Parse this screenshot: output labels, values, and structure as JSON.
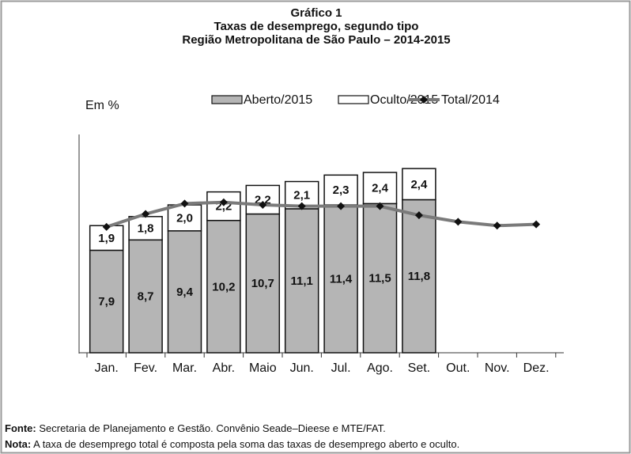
{
  "chart_data": {
    "type": "bar",
    "stacked": true,
    "title": "Gráfico 1",
    "subtitle": "Taxas de desemprego, segundo tipo",
    "subtitle2": "Região Metropolitana de São Paulo – 2014-2015",
    "unit_label": "Em %",
    "categories": [
      "Jan.",
      "Fev.",
      "Mar.",
      "Abr.",
      "Maio",
      "Jun.",
      "Jul.",
      "Ago.",
      "Set.",
      "Out.",
      "Nov.",
      "Dez."
    ],
    "series": [
      {
        "name": "Aberto/2015",
        "color": "#b5b5b5",
        "type": "bar",
        "values": [
          7.9,
          8.7,
          9.4,
          10.2,
          10.7,
          11.1,
          11.4,
          11.5,
          11.8,
          null,
          null,
          null
        ],
        "value_labels": [
          "7,9",
          "8,7",
          "9,4",
          "10,2",
          "10,7",
          "11,1",
          "11,4",
          "11,5",
          "11,8",
          null,
          null,
          null
        ]
      },
      {
        "name": "Oculto/2015",
        "color": "#ffffff",
        "type": "bar",
        "values": [
          1.9,
          1.8,
          2.0,
          2.2,
          2.2,
          2.1,
          2.3,
          2.4,
          2.4,
          null,
          null,
          null
        ],
        "value_labels": [
          "1,9",
          "1,8",
          "2,0",
          "2,2",
          "2,2",
          "2,1",
          "2,3",
          "2,4",
          "2,4",
          null,
          null,
          null
        ]
      },
      {
        "name": "Total/2014",
        "color": "#7a7a7a",
        "type": "line",
        "values": [
          9.7,
          10.7,
          11.5,
          11.6,
          11.4,
          11.3,
          11.3,
          11.3,
          10.6,
          10.1,
          9.8,
          9.9
        ]
      }
    ]
  },
  "notes": [
    {
      "label": "Fonte:",
      "text": "Secretaria de Planejamento e Gestão. Convênio Seade–Dieese e MTE/FAT."
    },
    {
      "label": "Nota:",
      "text": "A taxa de desemprego total é composta pela soma das taxas de desemprego aberto e oculto."
    }
  ]
}
